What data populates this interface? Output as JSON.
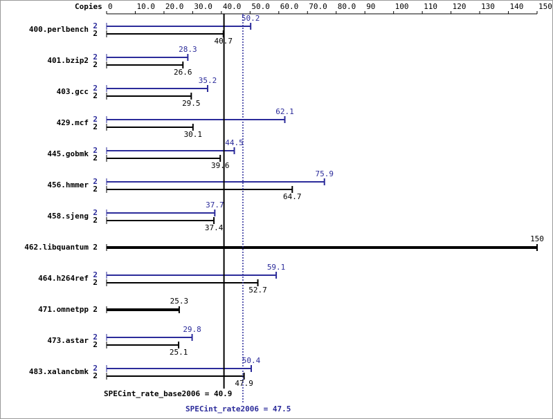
{
  "chart_data": {
    "type": "bar",
    "orientation": "horizontal",
    "copies_label": "Copies",
    "categories": [
      "400.perlbench",
      "401.bzip2",
      "403.gcc",
      "429.mcf",
      "445.gobmk",
      "456.hmmer",
      "458.sjeng",
      "462.libquantum",
      "464.h264ref",
      "471.omnetpp",
      "473.astar",
      "483.xalancbmk"
    ],
    "series": [
      {
        "color": "#2b2b9a",
        "copies": [
          2,
          2,
          2,
          2,
          2,
          2,
          2,
          null,
          2,
          null,
          2,
          2
        ],
        "values": [
          50.2,
          28.3,
          35.2,
          62.1,
          44.5,
          75.9,
          37.7,
          null,
          59.1,
          null,
          29.8,
          50.4
        ]
      },
      {
        "color": "#000000",
        "copies": [
          2,
          2,
          2,
          2,
          2,
          2,
          2,
          2,
          2,
          2,
          2,
          2
        ],
        "values": [
          40.7,
          26.6,
          29.5,
          30.1,
          39.6,
          64.7,
          37.4,
          150,
          52.7,
          25.3,
          25.1,
          47.9
        ]
      }
    ],
    "xlim": [
      0,
      150
    ],
    "xticks": [
      0,
      {
        "value": 10,
        "label": "10.0"
      },
      {
        "value": 20,
        "label": "20.0"
      },
      {
        "value": 30,
        "label": "30.0"
      },
      {
        "value": 40,
        "label": "40.0"
      },
      {
        "value": 50,
        "label": "50.0"
      },
      {
        "value": 60,
        "label": "60.0"
      },
      {
        "value": 70,
        "label": "70.0"
      },
      {
        "value": 80,
        "label": "80.0"
      },
      90,
      100,
      110,
      120,
      130,
      140,
      150
    ],
    "reference_lines": [
      {
        "label": "SPECint_rate_base2006 = 40.9",
        "value": 40.9,
        "color": "#000000",
        "style": "solid"
      },
      {
        "label": "SPECint_rate2006 = 47.5",
        "value": 47.5,
        "color": "#2b2b9a",
        "style": "dotted"
      }
    ]
  }
}
